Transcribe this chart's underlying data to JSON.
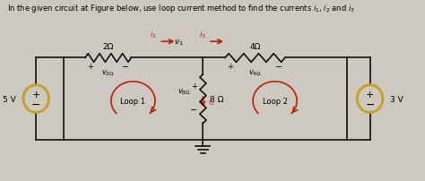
{
  "bg_color": "#cdc8c0",
  "wire_color": "#111111",
  "source_color": "#c8a020",
  "loop_arrow_color": "#bb2200",
  "current_arrow_color": "#bb2200",
  "title": "In the given circuit at Figure below, use loop current method to find the currents $i_1$, $i_2$ and $i_3$",
  "circuit": {
    "left_voltage": "5 V",
    "right_voltage": "3 V",
    "r1_label": "2Ω",
    "r2_label": "4Ω",
    "r3_label": "8 Ω",
    "v2_label": "$v_{2Ω}$",
    "v4_label": "$v_{4Ω}$",
    "v8_label": "$v_{8Ω}$",
    "v1_label": "$v_1$",
    "loop1_label": "Loop 1",
    "loop2_label": "Loop 2"
  },
  "xlim": [
    0,
    10
  ],
  "ylim": [
    0,
    4.2
  ],
  "figsize": [
    4.74,
    2.03
  ],
  "dpi": 100
}
